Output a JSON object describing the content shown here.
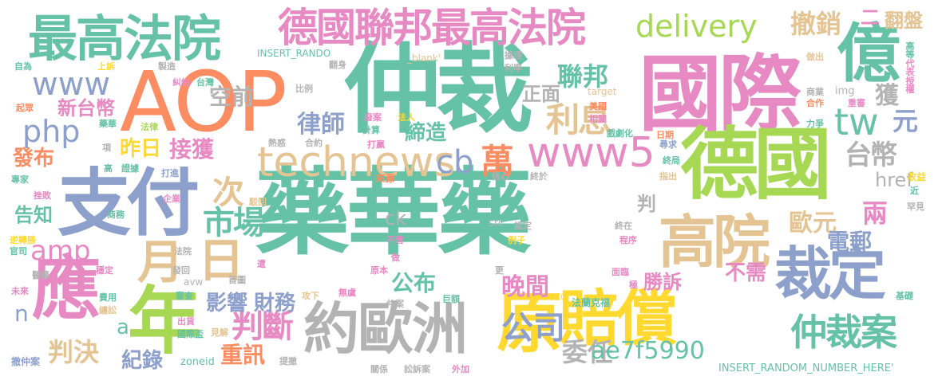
{
  "palette": {
    "green": "#66c2a5",
    "orange": "#fc8d62",
    "blue": "#8da0cb",
    "pink": "#e78ac3",
    "lime": "#a6d854",
    "yellow": "#ffd92f",
    "tan": "#e5c494",
    "gray": "#b3b3b3"
  },
  "words": [
    {
      "text": "藥華藥",
      "color": "green"
    },
    {
      "text": "仲裁",
      "color": "green"
    },
    {
      "text": "AOP",
      "color": "orange"
    },
    {
      "text": "國際",
      "color": "pink"
    },
    {
      "text": "德國",
      "color": "lime"
    },
    {
      "text": "支付",
      "color": "blue"
    },
    {
      "text": "賠償",
      "color": "yellow"
    },
    {
      "text": "最高法院",
      "color": "green"
    },
    {
      "text": "德國聯邦最高法院",
      "color": "pink"
    },
    {
      "text": "億",
      "color": "green"
    },
    {
      "text": "約歐洲",
      "color": "gray"
    },
    {
      "text": "年",
      "color": "lime"
    },
    {
      "text": "應",
      "color": "pink"
    },
    {
      "text": "原",
      "color": "yellow"
    },
    {
      "text": "裁定",
      "color": "blue"
    },
    {
      "text": "高院",
      "color": "tan"
    },
    {
      "text": "月",
      "color": "tan"
    },
    {
      "text": "日",
      "color": "tan"
    },
    {
      "text": "technews",
      "color": "tan"
    },
    {
      "text": "www5",
      "color": "pink"
    },
    {
      "text": "仲裁案",
      "color": "green"
    },
    {
      "text": "delivery",
      "color": "lime"
    },
    {
      "text": "www",
      "color": "blue"
    },
    {
      "text": "tw",
      "color": "green"
    },
    {
      "text": "php",
      "color": "blue"
    },
    {
      "text": "公司",
      "color": "blue"
    },
    {
      "text": "cb",
      "color": "blue"
    },
    {
      "text": "萬",
      "color": "orange"
    },
    {
      "text": "判斷",
      "color": "pink"
    },
    {
      "text": "利息",
      "color": "tan"
    },
    {
      "text": "市場",
      "color": "green"
    },
    {
      "text": "amp",
      "color": "pink"
    },
    {
      "text": "撤銷",
      "color": "tan"
    },
    {
      "text": "聯邦",
      "color": "green"
    },
    {
      "text": "台幣",
      "color": "gray"
    },
    {
      "text": "歐元",
      "color": "tan"
    },
    {
      "text": "判決",
      "color": "tan"
    },
    {
      "text": "次",
      "color": "tan"
    },
    {
      "text": "接獲",
      "color": "pink"
    },
    {
      "text": "昨日",
      "color": "yellow"
    },
    {
      "text": "元",
      "color": "blue"
    },
    {
      "text": "新台幣",
      "color": "pink"
    },
    {
      "text": "律師",
      "color": "blue"
    },
    {
      "text": "發布",
      "color": "orange"
    },
    {
      "text": "締造",
      "color": "green"
    },
    {
      "text": "晚間",
      "color": "pink"
    },
    {
      "text": "公布",
      "color": "green"
    },
    {
      "text": "影響",
      "color": "blue"
    },
    {
      "text": "財務",
      "color": "blue"
    },
    {
      "text": "重訊",
      "color": "orange"
    },
    {
      "text": "紀錄",
      "color": "blue"
    },
    {
      "text": "委任",
      "color": "gray"
    },
    {
      "text": "ae7f5990",
      "color": "green"
    },
    {
      "text": "電郵",
      "color": "blue"
    },
    {
      "text": "勝訴",
      "color": "pink"
    },
    {
      "text": "不需",
      "color": "pink"
    },
    {
      "text": "兩",
      "color": "pink"
    },
    {
      "text": "告知",
      "color": "green"
    },
    {
      "text": "空前",
      "color": "gray"
    },
    {
      "text": "正面",
      "color": "gray"
    },
    {
      "text": "獲",
      "color": "gray"
    },
    {
      "text": "href",
      "color": "gray"
    },
    {
      "text": "ck",
      "color": "gray"
    },
    {
      "text": "判",
      "color": "gray"
    },
    {
      "text": "翻盤",
      "color": "tan"
    },
    {
      "text": "n",
      "color": "blue"
    },
    {
      "text": "a",
      "color": "green"
    },
    {
      "text": "二",
      "color": "pink"
    },
    {
      "text": "INSERT_RANDOM_NUMBER_HERE'",
      "color": "green"
    },
    {
      "text": "INSERT_RANDO",
      "color": "green"
    },
    {
      "text": "zoneid",
      "color": "green"
    },
    {
      "text": "_blank'",
      "color": "tan"
    },
    {
      "text": "target",
      "color": "tan"
    },
    {
      "text": "src",
      "color": "gray"
    },
    {
      "text": "img",
      "color": "gray"
    },
    {
      "text": "avw",
      "color": "gray"
    },
    {
      "text": "ICC",
      "color": "yellow"
    },
    {
      "text": "法蘭克福",
      "color": "green"
    },
    {
      "text": "高等",
      "color": "green"
    },
    {
      "text": "代表",
      "color": "pink"
    },
    {
      "text": "授權",
      "color": "pink"
    },
    {
      "text": "做出",
      "color": "tan"
    },
    {
      "text": "商業",
      "color": "gray"
    },
    {
      "text": "合作",
      "color": "orange"
    },
    {
      "text": "重審",
      "color": "pink"
    },
    {
      "text": "力爭",
      "color": "green"
    },
    {
      "text": "尋求",
      "color": "blue"
    },
    {
      "text": "終局",
      "color": "green"
    },
    {
      "text": "指出",
      "color": "tan"
    },
    {
      "text": "收益",
      "color": "yellow"
    },
    {
      "text": "近",
      "color": "green"
    },
    {
      "text": "罕見",
      "color": "gray"
    },
    {
      "text": "基礎",
      "color": "green"
    },
    {
      "text": "面臨",
      "color": "pink"
    },
    {
      "text": "極",
      "color": "pink"
    },
    {
      "text": "撤仲案",
      "color": "blue"
    },
    {
      "text": "醫藥",
      "color": "gray"
    },
    {
      "text": "未來",
      "color": "pink"
    },
    {
      "text": "費用",
      "color": "green"
    },
    {
      "text": "纏訟",
      "color": "tan"
    },
    {
      "text": "出貨",
      "color": "pink"
    },
    {
      "text": "國際盃",
      "color": "green"
    },
    {
      "text": "審查",
      "color": "green"
    },
    {
      "text": "見解",
      "color": "tan"
    },
    {
      "text": "提撤",
      "color": "gray"
    },
    {
      "text": "關係",
      "color": "gray"
    },
    {
      "text": "訟訴案",
      "color": "gray"
    },
    {
      "text": "外加",
      "color": "pink"
    },
    {
      "text": "巨額",
      "color": "green"
    },
    {
      "text": "仲案",
      "color": "gray"
    },
    {
      "text": "攻下",
      "color": "tan"
    },
    {
      "text": "無虞",
      "color": "pink"
    },
    {
      "text": "首圖",
      "color": "gray"
    },
    {
      "text": "發回",
      "color": "gray"
    },
    {
      "text": "法院",
      "color": "gray"
    },
    {
      "text": "遭",
      "color": "pink"
    },
    {
      "text": "原本",
      "color": "pink"
    },
    {
      "text": "更",
      "color": "gray"
    },
    {
      "text": "做",
      "color": "pink"
    },
    {
      "text": "不啻",
      "color": "pink"
    },
    {
      "text": "例子",
      "color": "yellow"
    },
    {
      "text": "程序",
      "color": "pink"
    },
    {
      "text": "終在",
      "color": "gray"
    },
    {
      "text": "認定",
      "color": "gray"
    },
    {
      "text": "給予",
      "color": "green"
    },
    {
      "text": "信心",
      "color": "gray"
    },
    {
      "text": "來源",
      "color": "orange"
    },
    {
      "text": "終於",
      "color": "gray"
    },
    {
      "text": "駁回",
      "color": "tan"
    },
    {
      "text": "證據",
      "color": "green"
    },
    {
      "text": "打進",
      "color": "blue"
    },
    {
      "text": "企業",
      "color": "pink"
    },
    {
      "text": "商務",
      "color": "green"
    },
    {
      "text": "挫敗",
      "color": "pink"
    },
    {
      "text": "逆轉勝",
      "color": "yellow"
    },
    {
      "text": "官司",
      "color": "green"
    },
    {
      "text": "穩定",
      "color": "pink"
    },
    {
      "text": "專家",
      "color": "green"
    },
    {
      "text": "高",
      "color": "green"
    },
    {
      "text": "項",
      "color": "gray"
    },
    {
      "text": "法律",
      "color": "lime"
    },
    {
      "text": "藥華",
      "color": "green"
    },
    {
      "text": "起眾",
      "color": "orange"
    },
    {
      "text": "熱惑",
      "color": "gray"
    },
    {
      "text": "合約",
      "color": "gray"
    },
    {
      "text": "打贏",
      "color": "pink"
    },
    {
      "text": "計算",
      "color": "green"
    },
    {
      "text": "法人",
      "color": "yellow"
    },
    {
      "text": "廢案",
      "color": "pink"
    },
    {
      "text": "美國",
      "color": "orange"
    },
    {
      "text": "相關",
      "color": "pink"
    },
    {
      "text": "戲劇化",
      "color": "green"
    },
    {
      "text": "日期",
      "color": "orange"
    },
    {
      "text": "利率",
      "color": "gray"
    },
    {
      "text": "據理",
      "color": "gray"
    },
    {
      "text": "比例",
      "color": "gray"
    },
    {
      "text": "台灣",
      "color": "green"
    },
    {
      "text": "糾紛",
      "color": "pink"
    },
    {
      "text": "製造",
      "color": "gray"
    },
    {
      "text": "翻身",
      "color": "gray"
    },
    {
      "text": "上訴",
      "color": "yellow"
    },
    {
      "text": "自為",
      "color": "green"
    }
  ]
}
